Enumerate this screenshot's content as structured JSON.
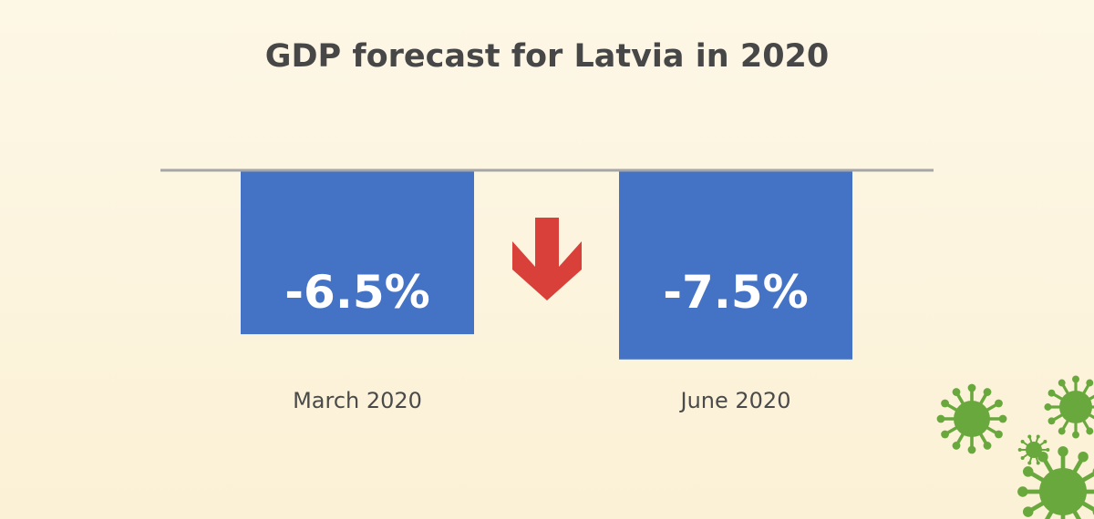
{
  "chart_data": {
    "type": "bar",
    "title": "GDP forecast for Latvia in 2020",
    "categories": [
      "March 2020",
      "June 2020"
    ],
    "values": [
      -6.5,
      -7.5
    ],
    "value_labels": [
      "-6.5%",
      "-7.5%"
    ],
    "ylim": [
      -10.5,
      0
    ],
    "grid": false,
    "xlabel": "",
    "ylabel": "",
    "colors": {
      "bar": "#4472c4",
      "axis": "#a6a6a6",
      "arrow": "#d9403a",
      "virus": "#69a83d"
    },
    "annotation_icon": "down-arrow-icon",
    "decoration_icon": "virus-icon"
  }
}
